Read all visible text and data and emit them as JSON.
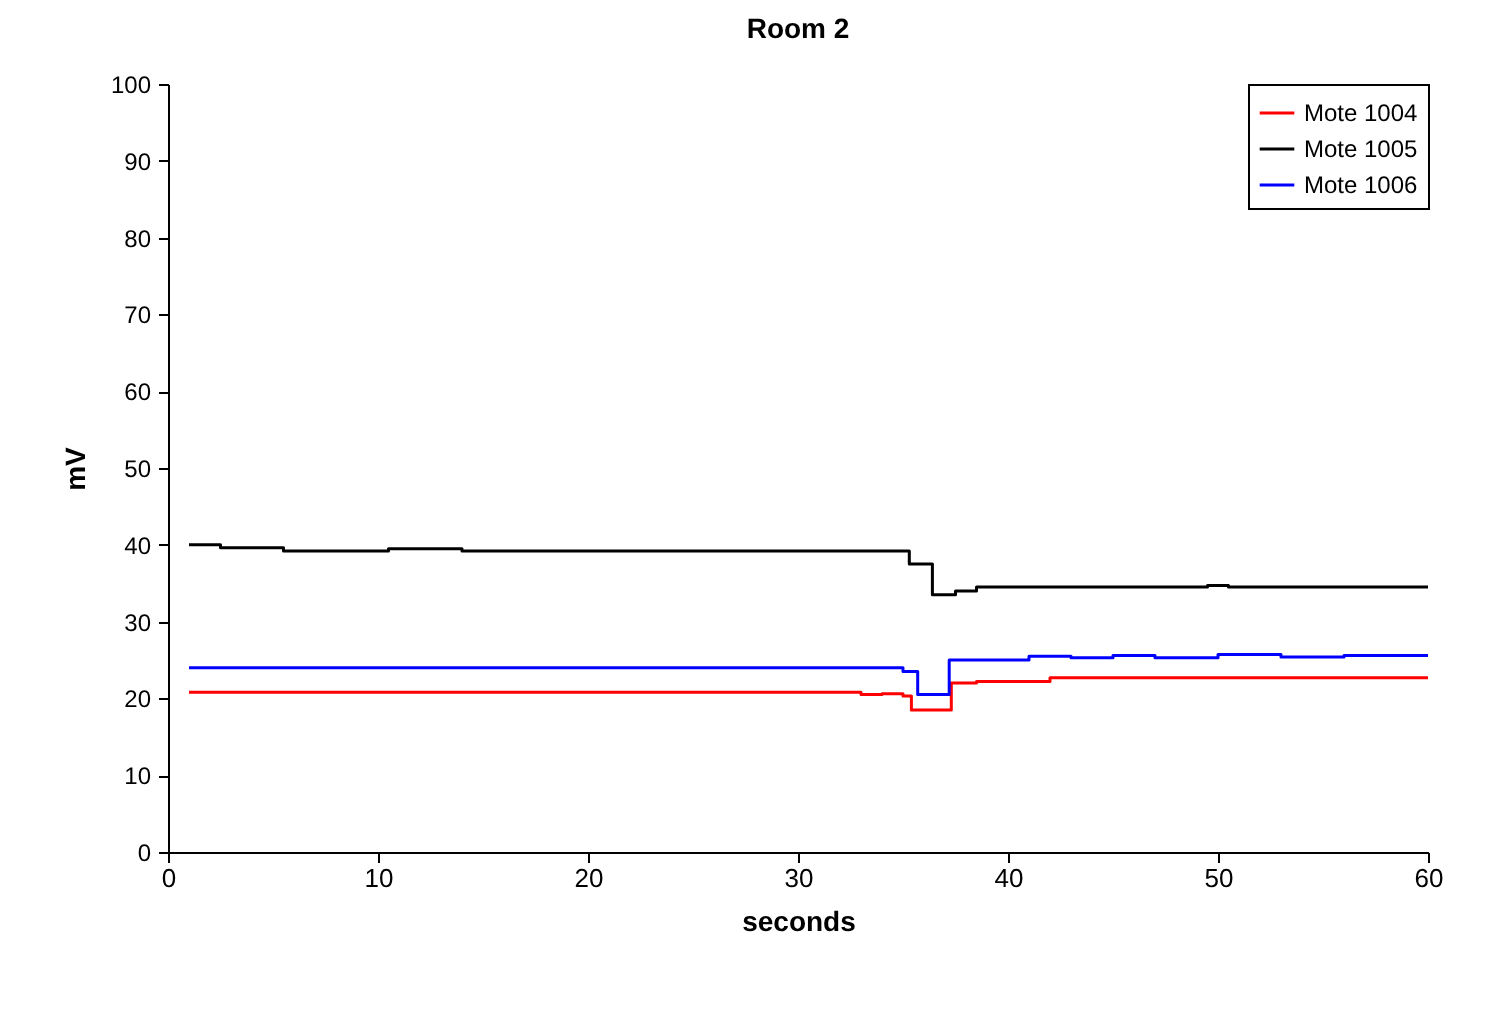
{
  "chart_data": {
    "type": "step",
    "title": "Room 2",
    "xlabel": "seconds",
    "ylabel": "mV",
    "xlim": [
      0,
      60
    ],
    "xticks": [
      0,
      10,
      20,
      30,
      40,
      50,
      60
    ],
    "ylim": [
      0,
      100
    ],
    "yticks": [
      0,
      10,
      20,
      30,
      40,
      50,
      60,
      70,
      80,
      90,
      100
    ],
    "grid": false,
    "legend": "top right",
    "series": [
      {
        "name": "Mote 1004",
        "color": "#ff0000",
        "x": [
          1,
          33,
          34,
          35,
          35.4,
          37.3,
          38.5,
          42,
          60
        ],
        "values": [
          20.8,
          20.5,
          20.6,
          20.3,
          18.5,
          22,
          22.2,
          22.7,
          22.7
        ]
      },
      {
        "name": "Mote 1005",
        "color": "#000000",
        "x": [
          1,
          2.5,
          5.5,
          10.5,
          14,
          35.3,
          36.4,
          37.5,
          38.5,
          49.5,
          50.5,
          60
        ],
        "values": [
          40,
          39.6,
          39.2,
          39.5,
          39.2,
          37.5,
          33.5,
          34,
          34.5,
          34.7,
          34.5,
          34.5
        ]
      },
      {
        "name": "Mote 1006",
        "color": "#0000ff",
        "x": [
          1,
          35,
          35.7,
          37.2,
          41,
          43,
          45,
          47,
          50,
          53,
          56,
          60
        ],
        "values": [
          24,
          23.5,
          20.5,
          25,
          25.5,
          25.3,
          25.6,
          25.3,
          25.7,
          25.4,
          25.6,
          25.6
        ]
      }
    ]
  }
}
